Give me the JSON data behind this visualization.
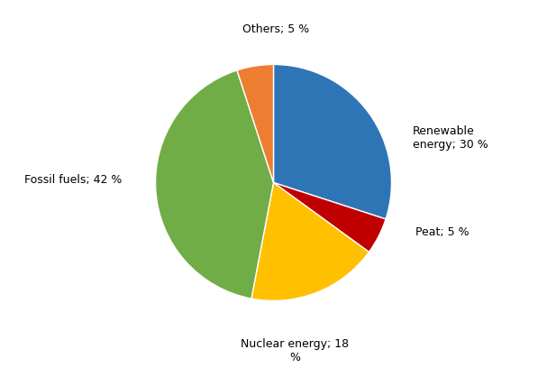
{
  "labels": [
    "Renewable\nenergy; 30 %",
    "Peat; 5 %",
    "Nuclear energy; 18\n%",
    "Fossil fuels; 42 %",
    "Others; 5 %"
  ],
  "values": [
    30,
    5,
    18,
    42,
    5
  ],
  "colors": [
    "#2e75b6",
    "#c00000",
    "#ffc000",
    "#70ad47",
    "#ed7d31"
  ],
  "startangle": 90,
  "background_color": "#ffffff",
  "label_coords": [
    [
      1.18,
      0.38,
      "left",
      "center"
    ],
    [
      1.2,
      -0.42,
      "left",
      "center"
    ],
    [
      0.18,
      -1.32,
      "center",
      "top"
    ],
    [
      -1.28,
      0.02,
      "right",
      "center"
    ],
    [
      0.02,
      1.25,
      "center",
      "bottom"
    ]
  ],
  "fontsize": 9
}
